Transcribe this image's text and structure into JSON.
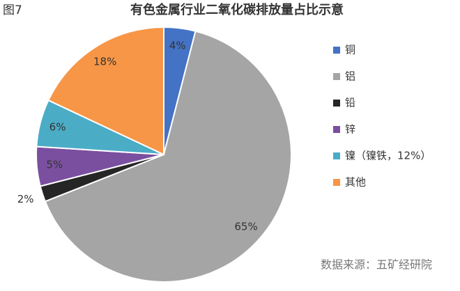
{
  "chart_data": {
    "type": "pie",
    "figure_label": "图7",
    "title": "有色金属行业二氧化碳排放量占比示意",
    "source": "数据来源：五矿经研院",
    "categories": [
      "铜",
      "铝",
      "铅",
      "锌",
      "镍（镍铁，12%）",
      "其他"
    ],
    "values": [
      4,
      65,
      2,
      5,
      6,
      18
    ],
    "value_labels": [
      "4%",
      "65%",
      "2%",
      "5%",
      "6%",
      "18%"
    ],
    "colors": [
      "#4472c4",
      "#a5a5a5",
      "#262626",
      "#7b4fa0",
      "#4bacc6",
      "#f79646"
    ],
    "legend": "right"
  }
}
